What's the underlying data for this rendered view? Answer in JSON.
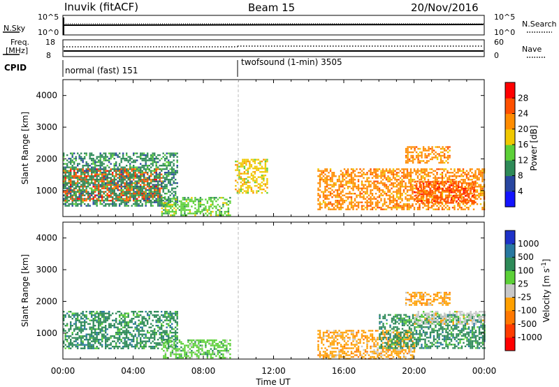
{
  "header": {
    "station": "Inuvik (fitACF)",
    "beam": "Beam 15",
    "date": "20/Nov/2016"
  },
  "top_panels": {
    "nsky_label": "N.Sky",
    "nsky_ticks": [
      "10^5",
      "10^0"
    ],
    "nsearch_label": "N.Search",
    "nsearch_ticks": [
      "10^5",
      "10^0"
    ],
    "freq_label_1": "Freq.",
    "freq_label_2": "[MHz]",
    "freq_ticks": [
      "18",
      "8"
    ],
    "nave_label": "Nave",
    "nave_ticks": [
      "60",
      "0"
    ],
    "cpid_label": "CPID",
    "cpid_segments": [
      {
        "label": "normal (fast) 151"
      },
      {
        "label": "twofsound (1-min) 3505"
      }
    ]
  },
  "chart_data": [
    {
      "type": "heatmap",
      "title": "",
      "xlabel": "Time UT",
      "ylabel": "Slant Range [km]",
      "xlim": [
        "00:00",
        "24:00"
      ],
      "ylim": [
        180,
        4500
      ],
      "x_tick_labels": [
        "00:00",
        "04:00",
        "08:00",
        "12:00",
        "16:00",
        "20:00",
        "00:00"
      ],
      "y_tick_labels": [
        "1000",
        "2000",
        "3000",
        "4000"
      ],
      "colorbar": {
        "label": "Power [dB]",
        "tick_labels": [
          "4",
          "8",
          "12",
          "16",
          "20",
          "24",
          "28"
        ],
        "colors": [
          "#1414ff",
          "#2846a0",
          "#2e8a58",
          "#5cd038",
          "#f0c800",
          "#ff8c00",
          "#ff5000",
          "#ff0000"
        ]
      },
      "echo_regions": [
        {
          "t_start": 0.0,
          "t_end": 5.6,
          "r_min": 700,
          "r_max": 1700,
          "level": 28
        },
        {
          "t_start": 0.0,
          "t_end": 6.5,
          "r_min": 500,
          "r_max": 2200,
          "level": 12
        },
        {
          "t_start": 5.6,
          "t_end": 9.5,
          "r_min": 200,
          "r_max": 800,
          "level": 16
        },
        {
          "t_start": 9.8,
          "t_end": 11.6,
          "r_min": 900,
          "r_max": 2000,
          "level": 20
        },
        {
          "t_start": 14.5,
          "t_end": 24.0,
          "r_min": 400,
          "r_max": 1700,
          "level": 22
        },
        {
          "t_start": 20.0,
          "t_end": 23.4,
          "r_min": 600,
          "r_max": 1300,
          "level": 28
        },
        {
          "t_start": 19.5,
          "t_end": 22.0,
          "r_min": 1900,
          "r_max": 2400,
          "level": 22
        }
      ]
    },
    {
      "type": "heatmap",
      "title": "",
      "xlabel": "Time UT",
      "ylabel": "Slant Range [km]",
      "xlim": [
        "00:00",
        "24:00"
      ],
      "ylim": [
        180,
        4500
      ],
      "x_tick_labels": [
        "00:00",
        "04:00",
        "08:00",
        "12:00",
        "16:00",
        "20:00",
        "00:00"
      ],
      "y_tick_labels": [
        "1000",
        "2000",
        "3000",
        "4000"
      ],
      "colorbar": {
        "label": "Velocity [m s-1]",
        "tick_labels": [
          "1000",
          "500",
          "100",
          "25",
          "-25",
          "-100",
          "-500",
          "-1000"
        ],
        "colors": [
          "#1e32c8",
          "#2878a0",
          "#2e8a58",
          "#5cd038",
          "#c8c8c8",
          "#ffa000",
          "#ff7800",
          "#ff3c00",
          "#ff0000"
        ]
      },
      "echo_regions": [
        {
          "t_start": 0.0,
          "t_end": 6.5,
          "r_min": 500,
          "r_max": 1700,
          "level": 100
        },
        {
          "t_start": 5.6,
          "t_end": 9.5,
          "r_min": 200,
          "r_max": 800,
          "level": 25
        },
        {
          "t_start": 14.5,
          "t_end": 20.0,
          "r_min": 200,
          "r_max": 1100,
          "level": -100
        },
        {
          "t_start": 18.0,
          "t_end": 24.0,
          "r_min": 500,
          "r_max": 1600,
          "level": 100
        },
        {
          "t_start": 20.0,
          "t_end": 24.0,
          "r_min": 1300,
          "r_max": 1700,
          "level": -25
        },
        {
          "t_start": 19.5,
          "t_end": 22.0,
          "r_min": 1900,
          "r_max": 2300,
          "level": -100
        }
      ]
    }
  ]
}
